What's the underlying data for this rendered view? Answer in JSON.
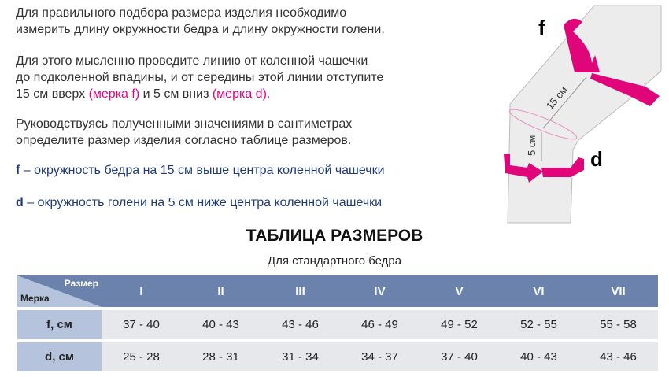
{
  "intro": {
    "p1_l1": "Для правильного подбора размера изделия необходимо",
    "p1_l2": "измерить длину окружности бедра и длину окружности голени.",
    "p2_l1": "Для этого мысленно проведите линию от коленной чашечки",
    "p2_l2": "до подколенной впадины, и от середины этой линии отступите",
    "p2_l3a": "15 см вверх ",
    "p2_l3b": "(мерка f)",
    "p2_l3c": " и 5 см вниз ",
    "p2_l3d": "(мерка d).",
    "p3_l1": "Руководствуясь полученными значениями в сантиметрах",
    "p3_l2": "определите размер изделия согласно таблице размеров.",
    "f_letter": "f",
    "f_text": " – окружность бедра на 15 см выше центра коленной чашечки",
    "d_letter": "d",
    "d_text": " – окружность голени на 5 см ниже центра коленной чашечки"
  },
  "diagram": {
    "f_label": "f",
    "d_label": "d",
    "dist_15": "15 см",
    "dist_5": "5 см",
    "accent": "#e0067a"
  },
  "table": {
    "title": "ТАБЛИЦА РАЗМЕРОВ",
    "subtitle": "Для стандартного бедра",
    "corner_top": "Размер",
    "corner_bottom": "Мерка",
    "sizes": [
      "I",
      "II",
      "III",
      "IV",
      "V",
      "VI",
      "VII"
    ],
    "rows": [
      {
        "label": "f, см",
        "values": [
          "37 - 40",
          "40 - 43",
          "43 - 46",
          "46 - 49",
          "49 - 52",
          "52 - 55",
          "55 - 58"
        ]
      },
      {
        "label": "d, см",
        "values": [
          "25 - 28",
          "28 - 31",
          "31 - 34",
          "34 - 37",
          "37 - 40",
          "40 - 43",
          "43 - 46"
        ]
      }
    ]
  }
}
